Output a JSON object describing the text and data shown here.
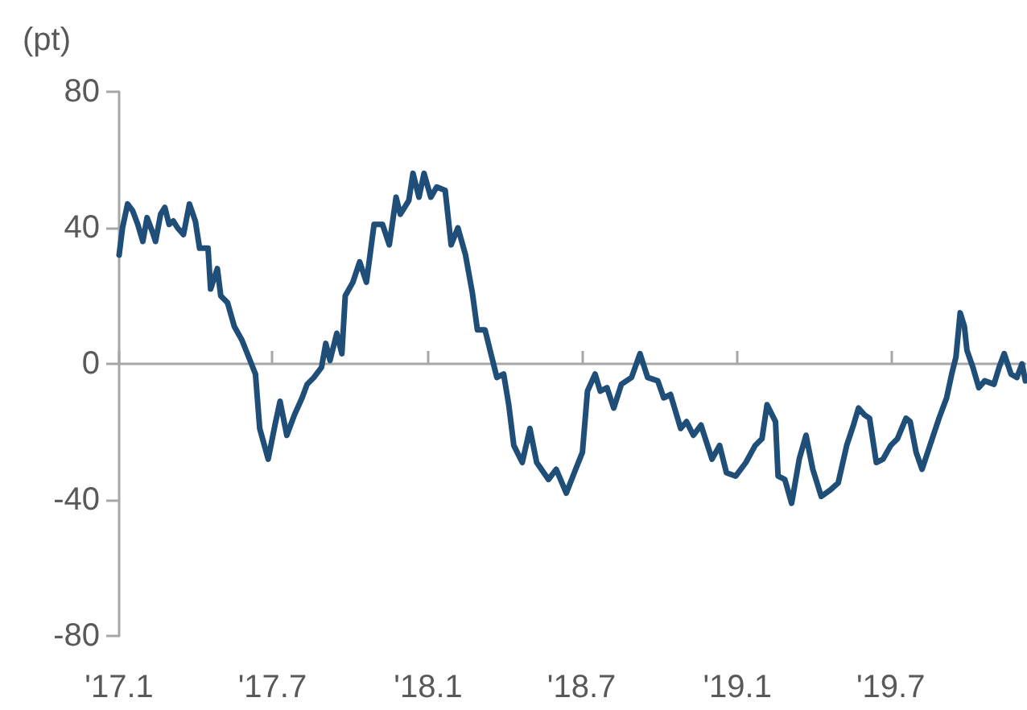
{
  "chart_data": {
    "type": "line",
    "ylabel": "(pt)",
    "color": "#1f4e79",
    "marker": "none",
    "line_style": "solid",
    "xlim": [
      "2017-01-01",
      "2019-12-07"
    ],
    "xticks": [
      {
        "value": "2017-01",
        "label": "'17.1"
      },
      {
        "value": "2017-07",
        "label": "'17.7"
      },
      {
        "value": "2018-01",
        "label": "'18.1"
      },
      {
        "value": "2018-07",
        "label": "'18.7"
      },
      {
        "value": "2019-01",
        "label": "'19.1"
      },
      {
        "value": "2019-07",
        "label": "'19.7"
      }
    ],
    "ylim": [
      -80,
      80
    ],
    "yticks": [
      -80,
      -40,
      0,
      40,
      80
    ],
    "x": [
      "2017-01-01",
      "2017-01-05",
      "2017-01-11",
      "2017-01-17",
      "2017-01-23",
      "2017-01-29",
      "2017-02-03",
      "2017-02-09",
      "2017-02-13",
      "2017-02-19",
      "2017-02-24",
      "2017-03-01",
      "2017-03-06",
      "2017-03-11",
      "2017-03-18",
      "2017-03-25",
      "2017-04-01",
      "2017-04-06",
      "2017-04-16",
      "2017-04-19",
      "2017-04-27",
      "2017-05-01",
      "2017-05-09",
      "2017-05-17",
      "2017-05-26",
      "2017-06-03",
      "2017-06-11",
      "2017-06-16",
      "2017-06-26",
      "2017-07-04",
      "2017-07-10",
      "2017-07-18",
      "2017-07-27",
      "2017-08-05",
      "2017-08-11",
      "2017-08-19",
      "2017-08-28",
      "2017-09-02",
      "2017-09-07",
      "2017-09-15",
      "2017-09-21",
      "2017-09-25",
      "2017-10-04",
      "2017-10-12",
      "2017-10-20",
      "2017-10-29",
      "2017-11-08",
      "2017-11-16",
      "2017-11-24",
      "2017-11-29",
      "2017-12-09",
      "2017-12-14",
      "2017-12-21",
      "2017-12-27",
      "2018-01-04",
      "2018-01-11",
      "2018-01-21",
      "2018-01-28",
      "2018-02-05",
      "2018-02-14",
      "2018-02-22",
      "2018-02-28",
      "2018-03-09",
      "2018-03-17",
      "2018-03-23",
      "2018-03-31",
      "2018-04-06",
      "2018-04-12",
      "2018-04-22",
      "2018-05-01",
      "2018-05-09",
      "2018-05-23",
      "2018-06-01",
      "2018-06-13",
      "2018-06-24",
      "2018-07-02",
      "2018-07-08",
      "2018-07-17",
      "2018-07-23",
      "2018-07-31",
      "2018-08-08",
      "2018-08-17",
      "2018-08-29",
      "2018-09-08",
      "2018-09-17",
      "2018-09-29",
      "2018-10-06",
      "2018-10-14",
      "2018-10-26",
      "2018-11-02",
      "2018-11-10",
      "2018-11-19",
      "2018-12-02",
      "2018-12-11",
      "2018-12-19",
      "2018-12-30",
      "2019-01-11",
      "2019-01-22",
      "2019-01-30",
      "2019-02-05",
      "2019-02-15",
      "2019-02-18",
      "2019-02-26",
      "2019-03-06",
      "2019-03-15",
      "2019-03-23",
      "2019-03-31",
      "2019-04-10",
      "2019-04-21",
      "2019-04-30",
      "2019-05-10",
      "2019-05-18",
      "2019-05-24",
      "2019-05-31",
      "2019-06-06",
      "2019-06-14",
      "2019-06-22",
      "2019-07-01",
      "2019-07-09",
      "2019-07-19",
      "2019-07-24",
      "2019-07-31",
      "2019-08-07",
      "2019-08-19",
      "2019-08-27",
      "2019-09-05",
      "2019-09-11",
      "2019-09-16",
      "2019-09-21",
      "2019-09-26",
      "2019-09-29",
      "2019-10-06",
      "2019-10-13",
      "2019-10-20",
      "2019-10-31",
      "2019-11-06",
      "2019-11-12",
      "2019-11-20",
      "2019-11-27",
      "2019-12-03",
      "2019-12-07"
    ],
    "values": [
      32,
      40,
      47,
      45,
      41,
      36,
      43,
      39,
      36,
      44,
      46,
      41,
      42,
      40,
      38,
      47,
      42,
      34,
      34,
      22,
      28,
      20,
      18,
      11,
      7,
      2,
      -3,
      -19,
      -28,
      -18,
      -11,
      -21,
      -15,
      -10,
      -6,
      -4,
      -1,
      6,
      1,
      9,
      3,
      20,
      24,
      30,
      24,
      41,
      41,
      35,
      49,
      44,
      48,
      56,
      49,
      56,
      49,
      52,
      51,
      35,
      40,
      32,
      21,
      10,
      10,
      2,
      -4,
      -3,
      -12,
      -24,
      -29,
      -19,
      -29,
      -34,
      -31,
      -38,
      -31,
      -26,
      -8,
      -3,
      -8,
      -7,
      -13,
      -6,
      -4,
      3,
      -4,
      -5,
      -10,
      -9,
      -19,
      -17,
      -21,
      -18,
      -28,
      -24,
      -32,
      -33,
      -29,
      -24,
      -22,
      -12,
      -17,
      -33,
      -34,
      -41,
      -28,
      -21,
      -31,
      -39,
      -37,
      -35,
      -24,
      -18,
      -13,
      -15,
      -16,
      -29,
      -28,
      -24,
      -22,
      -16,
      -17,
      -26,
      -31,
      -22,
      -16,
      -10,
      -3,
      2,
      15,
      11,
      4,
      -1,
      -7,
      -5,
      -6,
      -1,
      3,
      -3,
      -4,
      0,
      -5
    ]
  }
}
